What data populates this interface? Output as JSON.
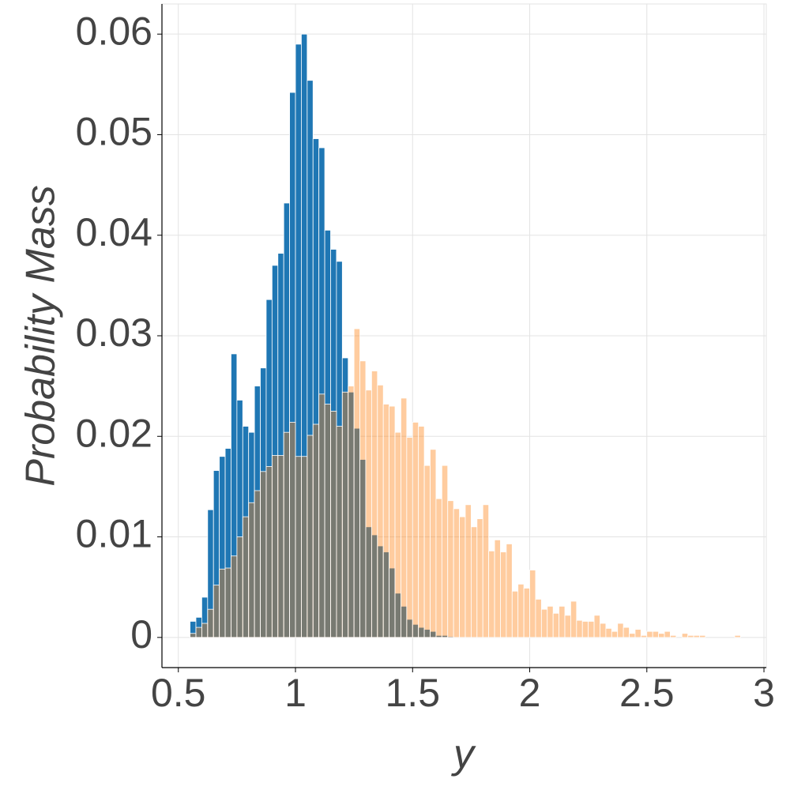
{
  "chart_data": {
    "type": "histogram",
    "xlabel": "y",
    "ylabel": "Probability Mass",
    "bins": [
      0.55,
      0.575,
      0.6,
      0.625,
      0.65,
      0.675,
      0.7,
      0.725,
      0.75,
      0.775,
      0.8,
      0.825,
      0.85,
      0.875,
      0.9,
      0.925,
      0.95,
      0.975,
      1.0,
      1.025,
      1.05,
      1.075,
      1.1,
      1.125,
      1.15,
      1.175,
      1.2,
      1.225,
      1.25,
      1.275,
      1.3,
      1.325,
      1.35,
      1.375,
      1.4,
      1.425,
      1.45,
      1.475,
      1.5,
      1.525,
      1.55,
      1.575,
      1.6,
      1.625,
      1.65,
      1.675,
      1.7,
      1.725,
      1.75,
      1.775,
      1.8,
      1.825,
      1.85,
      1.875,
      1.9,
      1.925,
      1.95,
      1.975,
      2.0,
      2.025,
      2.05,
      2.075,
      2.1,
      2.125,
      2.15,
      2.175,
      2.2,
      2.225,
      2.25,
      2.275,
      2.3,
      2.325,
      2.35,
      2.375,
      2.4,
      2.425,
      2.45,
      2.475,
      2.5,
      2.525,
      2.55,
      2.575,
      2.6,
      2.625,
      2.65,
      2.675,
      2.7,
      2.725,
      2.75,
      2.775,
      2.8,
      2.825,
      2.85,
      2.875,
      2.9
    ],
    "series": [
      {
        "color": "#1f77b4",
        "opacity": 1,
        "values": [
          0.0016,
          0.002,
          0.004,
          0.0127,
          0.0166,
          0.018,
          0.0188,
          0.0282,
          0.0236,
          0.021,
          0.0204,
          0.025,
          0.0268,
          0.0336,
          0.037,
          0.0382,
          0.0432,
          0.0542,
          0.059,
          0.06,
          0.0554,
          0.0496,
          0.0487,
          0.0405,
          0.0386,
          0.0374,
          0.0278,
          0.0244,
          0.0208,
          0.0177,
          0.011,
          0.0102,
          0.0091,
          0.0085,
          0.0069,
          0.0044,
          0.0031,
          0.0018,
          0.0013,
          0.001,
          0.0008,
          0.0006,
          0.0002,
          0.0002,
          0.0001,
          0,
          0,
          0,
          0,
          0,
          0,
          0,
          0,
          0,
          0,
          0,
          0,
          0,
          0,
          0,
          0,
          0,
          0,
          0,
          0,
          0,
          0,
          0,
          0,
          0,
          0,
          0,
          0,
          0,
          0,
          0,
          0,
          0,
          0,
          0,
          0,
          0,
          0,
          0,
          0,
          0,
          0,
          0,
          0,
          0,
          0,
          0,
          0,
          0
        ]
      },
      {
        "color": "#ff7f0e",
        "opacity": 0.4,
        "values": [
          0.0004,
          0.001,
          0.0014,
          0.0028,
          0.0052,
          0.0068,
          0.0069,
          0.0081,
          0.01,
          0.012,
          0.0134,
          0.0146,
          0.0165,
          0.017,
          0.0181,
          0.0181,
          0.0204,
          0.0214,
          0.018,
          0.018,
          0.0201,
          0.0212,
          0.0242,
          0.0232,
          0.0225,
          0.021,
          0.0244,
          0.025,
          0.0307,
          0.0275,
          0.0246,
          0.0265,
          0.0251,
          0.0232,
          0.023,
          0.0204,
          0.0238,
          0.0199,
          0.0214,
          0.021,
          0.0171,
          0.0187,
          0.0138,
          0.0171,
          0.0136,
          0.0128,
          0.012,
          0.0132,
          0.011,
          0.0118,
          0.0132,
          0.0086,
          0.0097,
          0.0085,
          0.0093,
          0.0046,
          0.0053,
          0.0049,
          0.0067,
          0.0038,
          0.0028,
          0.0031,
          0.0024,
          0.0031,
          0.0022,
          0.0036,
          0.0017,
          0.0016,
          0.0016,
          0.0022,
          0.0014,
          0.0009,
          0.0006,
          0.0014,
          0.001,
          0.0004,
          0.0008,
          0.0002,
          0.0006,
          0.0006,
          0.0004,
          0.0006,
          0.0002,
          0,
          0.0004,
          0.0002,
          0.0002,
          0.0002,
          0,
          0,
          0,
          0,
          0,
          0.0002
        ]
      }
    ],
    "xlim": [
      0.43,
      3.01
    ],
    "ylim": [
      -0.003,
      0.063
    ],
    "xticks": [
      0.5,
      1,
      1.5,
      2,
      2.5,
      3
    ],
    "yticks": [
      0,
      0.01,
      0.02,
      0.03,
      0.04,
      0.05,
      0.06
    ],
    "grid": true
  }
}
